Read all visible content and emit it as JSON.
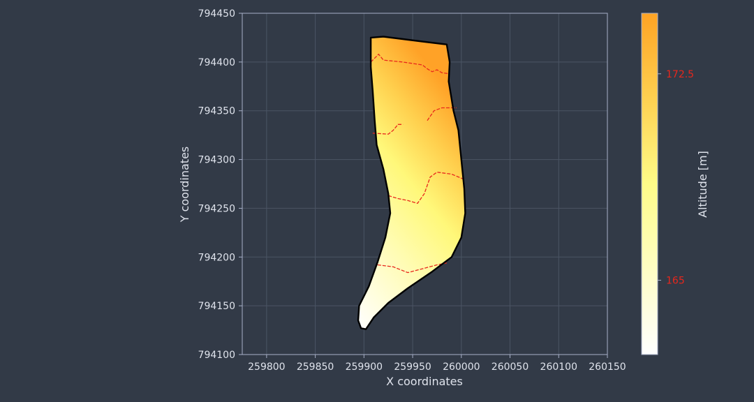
{
  "colors": {
    "background": "#323a47",
    "frame": "#a8b0c8",
    "grid": "#4b5564",
    "text": "#dfe3ec",
    "contour": "#e8271c",
    "outline": "#000000",
    "cbar_labels": "#e8271c",
    "colormap": [
      "#ffffff",
      "#fffca0",
      "#fff87a",
      "#ffd14a",
      "#ffa324"
    ]
  },
  "chart_data": {
    "type": "heatmap",
    "title": "",
    "xlabel": "X coordinates",
    "ylabel": "Y coordinates",
    "xlim": [
      259775,
      260150
    ],
    "ylim": [
      794100,
      794450
    ],
    "xticks": [
      259800,
      259850,
      259900,
      259950,
      260000,
      260050,
      260100,
      260150
    ],
    "yticks": [
      794100,
      794150,
      794200,
      794250,
      794300,
      794350,
      794400,
      794450
    ],
    "grid": true,
    "colorbar": {
      "label": "Altitude [m]",
      "range": [
        162.3,
        174.7
      ],
      "ticks": [
        165,
        172.5
      ],
      "tick_labels": [
        "165",
        "172.5"
      ]
    },
    "boundary": [
      [
        259907,
        794425
      ],
      [
        259920,
        794426
      ],
      [
        259960,
        794421
      ],
      [
        259985,
        794418
      ],
      [
        259988,
        794400
      ],
      [
        259987,
        794380
      ],
      [
        259992,
        794350
      ],
      [
        259997,
        794330
      ],
      [
        260000,
        794300
      ],
      [
        260003,
        794270
      ],
      [
        260004,
        794245
      ],
      [
        260000,
        794220
      ],
      [
        259990,
        794200
      ],
      [
        259970,
        794185
      ],
      [
        259945,
        794168
      ],
      [
        259925,
        794153
      ],
      [
        259910,
        794138
      ],
      [
        259902,
        794126
      ],
      [
        259897,
        794127
      ],
      [
        259894,
        794135
      ],
      [
        259895,
        794150
      ],
      [
        259905,
        794170
      ],
      [
        259914,
        794195
      ],
      [
        259922,
        794220
      ],
      [
        259927,
        794245
      ],
      [
        259925,
        794265
      ],
      [
        259920,
        794290
      ],
      [
        259913,
        794315
      ],
      [
        259911,
        794340
      ],
      [
        259909,
        794370
      ],
      [
        259907,
        794395
      ],
      [
        259907,
        794425
      ]
    ],
    "contours": [
      [
        [
          259907,
          794400
        ],
        [
          259915,
          794408
        ],
        [
          259920,
          794402
        ],
        [
          259940,
          794400
        ],
        [
          259960,
          794397
        ],
        [
          259965,
          794393
        ],
        [
          259970,
          794390
        ],
        [
          259975,
          794392
        ],
        [
          259980,
          794389
        ],
        [
          259987,
          794388
        ]
      ],
      [
        [
          259965,
          794340
        ],
        [
          259972,
          794350
        ],
        [
          259980,
          794353
        ],
        [
          259995,
          794353
        ]
      ],
      [
        [
          259909,
          794327
        ],
        [
          259925,
          794326
        ],
        [
          259930,
          794330
        ],
        [
          259935,
          794336
        ],
        [
          259940,
          794336
        ]
      ],
      [
        [
          259925,
          794263
        ],
        [
          259935,
          794260
        ],
        [
          259945,
          794258
        ],
        [
          259955,
          794255
        ],
        [
          259962,
          794265
        ],
        [
          259968,
          794282
        ],
        [
          259975,
          794287
        ],
        [
          259990,
          794285
        ],
        [
          260002,
          794280
        ]
      ],
      [
        [
          259914,
          794192
        ],
        [
          259930,
          794190
        ],
        [
          259945,
          794184
        ],
        [
          259960,
          794188
        ],
        [
          259975,
          794192
        ],
        [
          259985,
          794194
        ]
      ]
    ]
  }
}
